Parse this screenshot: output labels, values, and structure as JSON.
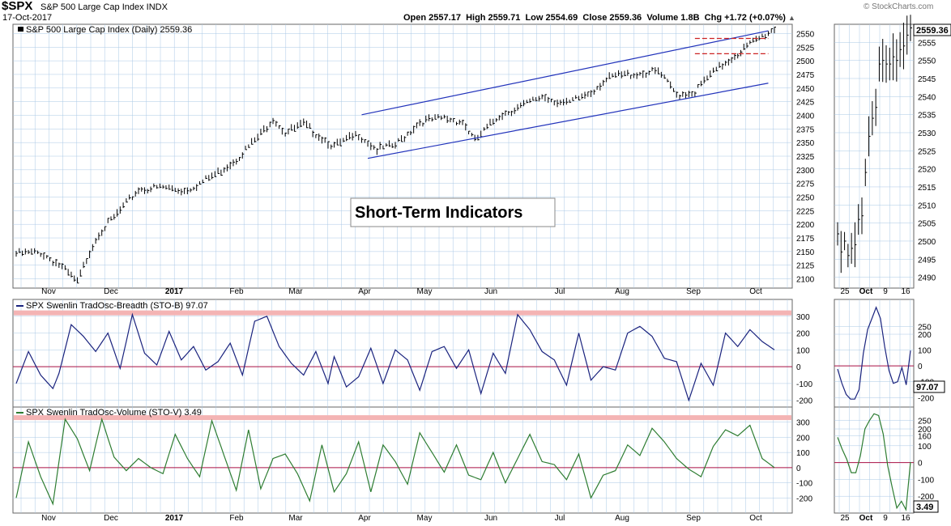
{
  "header": {
    "symbol": "$SPX",
    "name": "S&P 500 Large Cap Index INDX",
    "date": "17-Oct-2017",
    "open": "Open 2557.17",
    "high": "High 2559.71",
    "low": "Low 2554.69",
    "close": "Close 2559.36",
    "volume": "Volume 1.8B",
    "chg": "Chg +1.72 (+0.07%)",
    "credit": "© StockCharts.com"
  },
  "panels": {
    "price_label": "S&P 500 Large Cap Index (Daily) 2559.36",
    "breadth_label": "SPX Swenlin TradOsc-Breadth (STO-B) 97.07",
    "volume_label": "SPX Swenlin TradOsc-Volume (STO-V) 3.49",
    "annotation": "Short-Term Indicators",
    "price_tag": "2559.36",
    "breadth_tag": "97.07",
    "volume_tag": "3.49"
  },
  "colors": {
    "grid": "#aac8e6",
    "price_bar": "#000000",
    "channel": "#2233bb",
    "resistance": "#cc2222",
    "breadth_line": "#1a237e",
    "volume_line": "#2e7d32",
    "zero_line": "#aa1144",
    "band": "#f4b4b4"
  },
  "chart_data": [
    {
      "type": "line",
      "panel": "price-main",
      "style": "ohlc-bars",
      "x_tick_labels": [
        "Nov",
        "Dec",
        "2017",
        "Feb",
        "Mar",
        "Apr",
        "May",
        "Jun",
        "Jul",
        "Aug",
        "Sep",
        "Oct"
      ],
      "y_ticks": [
        2100,
        2125,
        2150,
        2175,
        2200,
        2225,
        2250,
        2275,
        2300,
        2325,
        2350,
        2375,
        2400,
        2425,
        2450,
        2475,
        2500,
        2525,
        2550
      ],
      "ylim": [
        2083,
        2567
      ],
      "x_index_range": [
        0,
        248
      ],
      "series": [
        {
          "name": "S&P 500 Large Cap Index (Daily)",
          "x": [
            0,
            8,
            14,
            20,
            24,
            27,
            32,
            40,
            48,
            55,
            60,
            66,
            72,
            80,
            84,
            88,
            94,
            104,
            112,
            118,
            124,
            132,
            140,
            146,
            150,
            158,
            166,
            172,
            180,
            188,
            192,
            196,
            204,
            210,
            216,
            222,
            226,
            232,
            240,
            248
          ],
          "values": [
            2146,
            2148,
            2126,
            2093,
            2150,
            2184,
            2212,
            2264,
            2268,
            2262,
            2275,
            2295,
            2320,
            2365,
            2395,
            2368,
            2383,
            2343,
            2365,
            2337,
            2345,
            2388,
            2395,
            2388,
            2353,
            2400,
            2418,
            2435,
            2420,
            2443,
            2462,
            2472,
            2477,
            2480,
            2438,
            2443,
            2468,
            2497,
            2530,
            2559
          ]
        }
      ],
      "annotations": [
        {
          "type": "channel-upper",
          "points": [
            [
              113,
              2401
            ],
            [
              246,
              2555
            ]
          ]
        },
        {
          "type": "channel-lower",
          "points": [
            [
              115,
              2321
            ],
            [
              246,
              2459
            ]
          ]
        },
        {
          "type": "resistance",
          "value": 2541,
          "x": [
            222,
            246
          ]
        },
        {
          "type": "resistance",
          "value": 2513,
          "x": [
            222,
            246
          ]
        }
      ],
      "last_value": 2559.36
    },
    {
      "type": "line",
      "panel": "price-zoom",
      "style": "ohlc-bars",
      "x_tick_labels": [
        "25",
        "Oct",
        "9",
        "16"
      ],
      "y_ticks": [
        2490,
        2495,
        2500,
        2505,
        2510,
        2515,
        2520,
        2525,
        2530,
        2535,
        2540,
        2545,
        2550,
        2555
      ],
      "ylim": [
        2487,
        2560
      ],
      "series": [
        {
          "name": "S&P 500 Large Cap Index (Daily)",
          "values": [
            2502,
            2497,
            2500,
            2496,
            2498,
            2499,
            2506,
            2507,
            2519,
            2529,
            2534,
            2537,
            2549,
            2550,
            2549,
            2549,
            2551,
            2550,
            2553,
            2554,
            2557,
            2559
          ]
        }
      ]
    },
    {
      "type": "line",
      "panel": "breadth-main",
      "y_ticks": [
        -200,
        -100,
        0,
        100,
        200,
        300
      ],
      "ylim": [
        -240,
        400
      ],
      "band": 320,
      "zero": 0,
      "series": [
        {
          "name": "SPX Swenlin TradOsc-Breadth (STO-B)",
          "x": [
            0,
            4,
            8,
            12,
            14,
            18,
            22,
            26,
            30,
            34,
            38,
            42,
            46,
            50,
            54,
            58,
            62,
            66,
            70,
            74,
            78,
            82,
            86,
            90,
            94,
            98,
            102,
            104,
            108,
            112,
            116,
            120,
            124,
            128,
            132,
            136,
            140,
            144,
            148,
            152,
            156,
            160,
            164,
            168,
            172,
            176,
            180,
            184,
            188,
            192,
            196,
            200,
            204,
            208,
            212,
            216,
            220,
            224,
            228,
            232,
            236,
            240,
            244,
            248
          ],
          "values": [
            -100,
            90,
            -50,
            -130,
            -40,
            250,
            180,
            90,
            200,
            -10,
            310,
            80,
            10,
            210,
            40,
            120,
            -20,
            30,
            140,
            -50,
            270,
            300,
            120,
            20,
            -50,
            90,
            -100,
            60,
            -120,
            -60,
            110,
            -100,
            100,
            40,
            -140,
            90,
            120,
            -10,
            100,
            -160,
            80,
            -40,
            310,
            220,
            90,
            40,
            -110,
            200,
            -80,
            0,
            -20,
            200,
            240,
            180,
            50,
            30,
            -200,
            20,
            -110,
            200,
            120,
            220,
            150,
            100
          ]
        }
      ],
      "last_value": 97.07
    },
    {
      "type": "line",
      "panel": "breadth-zoom",
      "y_ticks": [
        -200,
        -100,
        0,
        100,
        200,
        250
      ],
      "ylim": [
        -260,
        420
      ],
      "series": [
        {
          "name": "SPX Swenlin TradOsc-Breadth (STO-B)",
          "values": [
            -20,
            -110,
            -180,
            -210,
            -210,
            -150,
            80,
            230,
            300,
            370,
            300,
            120,
            -30,
            -110,
            -100,
            -10,
            -120,
            97
          ]
        }
      ]
    },
    {
      "type": "line",
      "panel": "volume-main",
      "y_ticks": [
        -200,
        -100,
        0,
        100,
        200,
        300
      ],
      "ylim": [
        -300,
        400
      ],
      "band": 330,
      "zero": 0,
      "series": [
        {
          "name": "SPX Swenlin TradOsc-Volume (STO-V)",
          "x": [
            0,
            4,
            8,
            12,
            16,
            20,
            24,
            28,
            32,
            36,
            40,
            44,
            48,
            52,
            56,
            60,
            64,
            68,
            72,
            76,
            80,
            84,
            88,
            92,
            96,
            100,
            104,
            108,
            112,
            116,
            120,
            124,
            128,
            132,
            136,
            140,
            144,
            148,
            152,
            156,
            160,
            164,
            168,
            172,
            176,
            180,
            184,
            188,
            192,
            196,
            200,
            204,
            208,
            212,
            216,
            220,
            224,
            228,
            232,
            236,
            240,
            244,
            248
          ],
          "values": [
            -200,
            170,
            -60,
            -240,
            320,
            190,
            -20,
            320,
            70,
            -20,
            60,
            0,
            -40,
            220,
            60,
            -60,
            310,
            80,
            -150,
            250,
            -140,
            60,
            90,
            -40,
            -220,
            150,
            -160,
            -40,
            170,
            -160,
            150,
            40,
            -110,
            230,
            100,
            -30,
            150,
            -50,
            -80,
            100,
            -100,
            60,
            220,
            40,
            20,
            -80,
            90,
            -200,
            -50,
            -20,
            150,
            80,
            260,
            170,
            60,
            -10,
            -60,
            140,
            250,
            210,
            280,
            60,
            0
          ]
        }
      ],
      "last_value": 3.49
    },
    {
      "type": "line",
      "panel": "volume-zoom",
      "y_ticks": [
        -200,
        -100,
        0,
        100,
        160,
        200,
        250
      ],
      "ylim": [
        -300,
        330
      ],
      "series": [
        {
          "name": "SPX Swenlin TradOsc-Volume (STO-V)",
          "values": [
            150,
            80,
            20,
            -60,
            -60,
            40,
            200,
            250,
            290,
            280,
            170,
            -20,
            -150,
            -270,
            -230,
            -280,
            3.49
          ]
        }
      ]
    }
  ]
}
